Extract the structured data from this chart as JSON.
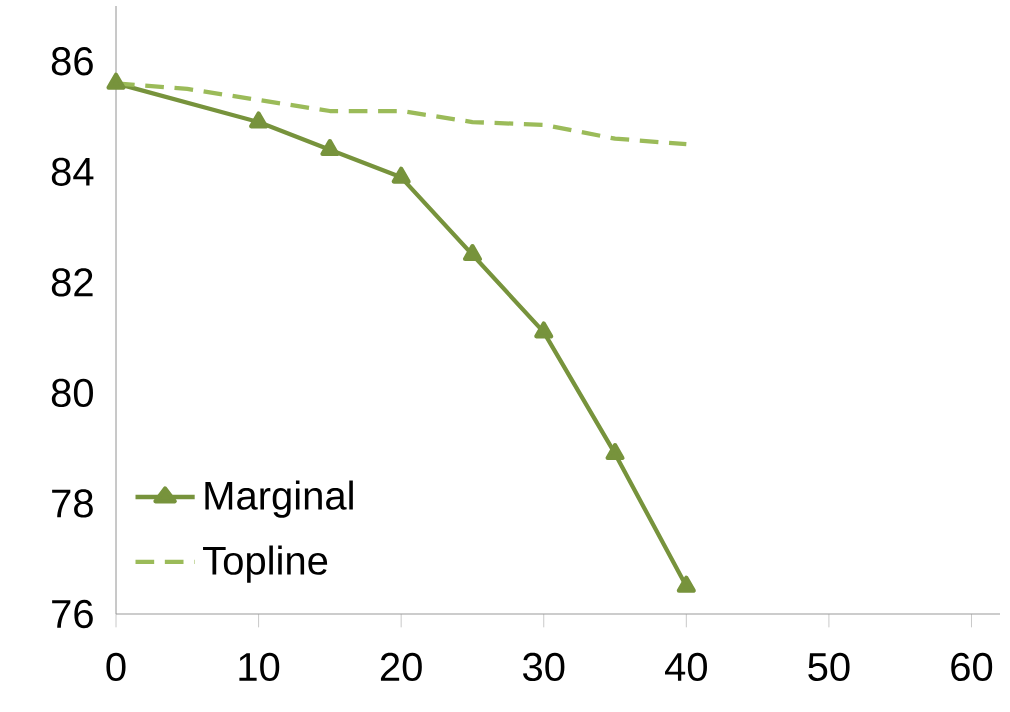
{
  "chart_data": {
    "type": "line",
    "x": [
      0,
      10,
      15,
      20,
      25,
      30,
      35,
      40
    ],
    "series": [
      {
        "name": "Marginal",
        "color": "#77933c",
        "marker": "triangle",
        "line_style": "solid",
        "values": [
          85.6,
          84.9,
          84.4,
          83.9,
          82.5,
          81.1,
          78.9,
          76.5
        ]
      },
      {
        "name": "Topline",
        "color": "#9bbb59",
        "marker": "none",
        "line_style": "dashed",
        "x": [
          0,
          5,
          10,
          15,
          20,
          25,
          30,
          35,
          40
        ],
        "values": [
          85.6,
          85.5,
          85.3,
          85.1,
          85.1,
          84.9,
          84.85,
          84.6,
          84.5
        ]
      }
    ],
    "xlim": [
      0,
      62
    ],
    "xticks": [
      0,
      10,
      20,
      30,
      40,
      50,
      60
    ],
    "ylim": [
      76,
      87
    ],
    "yticks": [
      76,
      78,
      80,
      82,
      84,
      86
    ],
    "grid": false,
    "legend": "bottom left"
  }
}
